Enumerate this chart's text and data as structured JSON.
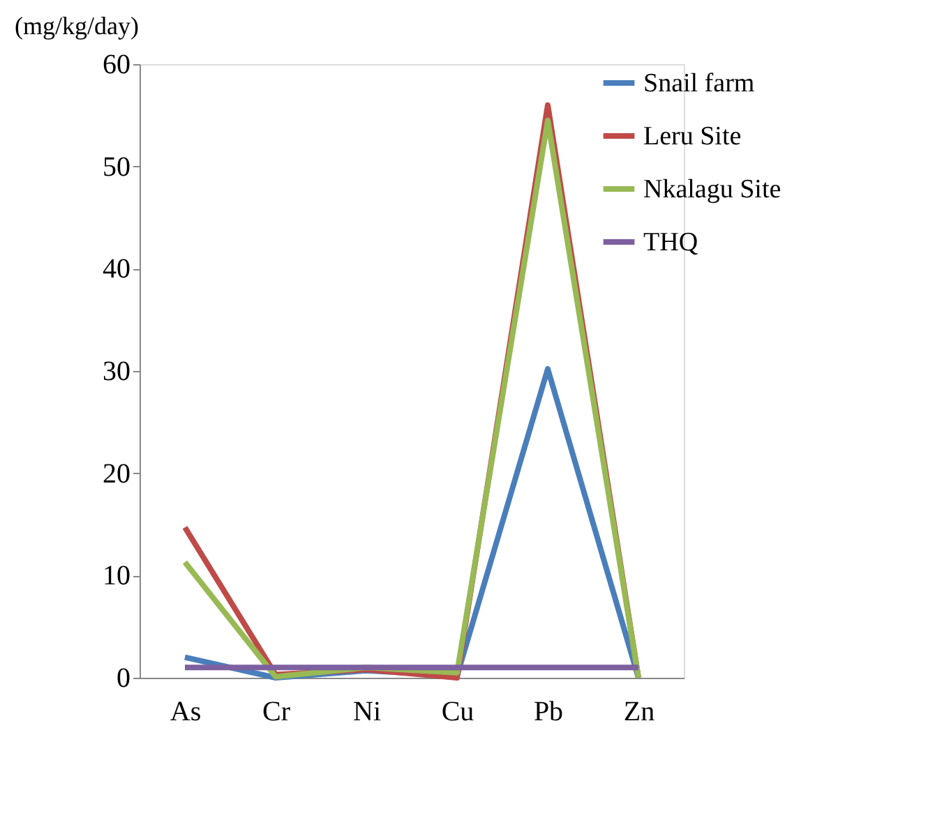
{
  "chart_data": {
    "type": "line",
    "ylabel": "(mg/kg/day)",
    "categories": [
      "As",
      "Cr",
      "Ni",
      "Cu",
      "Pb",
      "Zn"
    ],
    "series": [
      {
        "name": "Snail farm",
        "color": "#4a7ebb",
        "values": [
          2,
          0,
          0.7,
          0.2,
          30.2,
          0
        ]
      },
      {
        "name": "Leru Site",
        "color": "#be4b48",
        "values": [
          14.7,
          0.3,
          0.8,
          0,
          56,
          0
        ]
      },
      {
        "name": "Nkalagu Site",
        "color": "#98b954",
        "values": [
          11.3,
          0.1,
          1,
          0.5,
          54.5,
          0
        ]
      },
      {
        "name": "THQ",
        "color": "#7d60a0",
        "values": [
          1,
          1,
          1,
          1,
          1,
          1
        ]
      }
    ],
    "ylim": [
      0,
      60
    ],
    "yticks": [
      0,
      10,
      20,
      30,
      40,
      50,
      60
    ],
    "grid": false,
    "legend": "right",
    "marker": "none",
    "line_style": "solid"
  }
}
